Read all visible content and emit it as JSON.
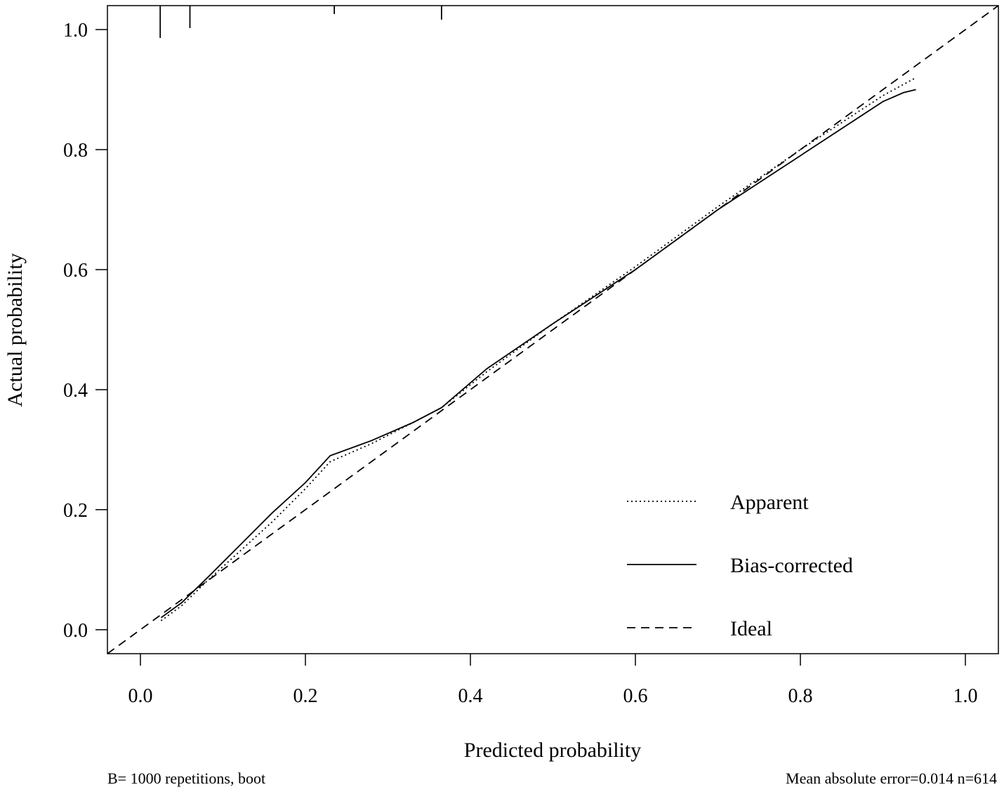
{
  "chart_data": {
    "type": "line",
    "xlabel": "Predicted probability",
    "ylabel": "Actual probability",
    "xlim": [
      -0.04,
      1.04
    ],
    "ylim": [
      -0.04,
      1.04
    ],
    "x_ticks": [
      0.0,
      0.2,
      0.4,
      0.6,
      0.8,
      1.0
    ],
    "y_ticks": [
      0.0,
      0.2,
      0.4,
      0.6,
      0.8,
      1.0
    ],
    "x_tick_labels": [
      "0.0",
      "0.2",
      "0.4",
      "0.6",
      "0.8",
      "1.0"
    ],
    "y_tick_labels": [
      "0.0",
      "0.2",
      "0.4",
      "0.6",
      "0.8",
      "1.0"
    ],
    "grid": false,
    "legend_position": "bottom-right",
    "series": [
      {
        "name": "Apparent",
        "line_style": "dotted",
        "x": [
          0.025,
          0.05,
          0.08,
          0.12,
          0.16,
          0.2,
          0.23,
          0.28,
          0.33,
          0.365,
          0.42,
          0.5,
          0.6,
          0.7,
          0.8,
          0.9,
          0.94
        ],
        "y": [
          0.015,
          0.04,
          0.08,
          0.13,
          0.18,
          0.235,
          0.28,
          0.31,
          0.345,
          0.37,
          0.43,
          0.51,
          0.605,
          0.705,
          0.8,
          0.89,
          0.92
        ]
      },
      {
        "name": "Bias-corrected",
        "line_style": "solid",
        "x": [
          0.025,
          0.05,
          0.08,
          0.12,
          0.16,
          0.2,
          0.23,
          0.28,
          0.33,
          0.365,
          0.42,
          0.5,
          0.6,
          0.7,
          0.8,
          0.9,
          0.925,
          0.94
        ],
        "y": [
          0.02,
          0.045,
          0.085,
          0.14,
          0.195,
          0.245,
          0.29,
          0.315,
          0.345,
          0.37,
          0.435,
          0.51,
          0.6,
          0.7,
          0.79,
          0.88,
          0.895,
          0.9
        ]
      },
      {
        "name": "Ideal",
        "line_style": "dashed",
        "x": [
          -0.04,
          1.04
        ],
        "y": [
          -0.04,
          1.04
        ]
      }
    ],
    "rug_x": [
      0.024,
      0.06,
      0.235,
      0.365
    ]
  },
  "footer": {
    "left": "B= 1000 repetitions, boot",
    "right": "Mean absolute error=0.014 n=614"
  }
}
